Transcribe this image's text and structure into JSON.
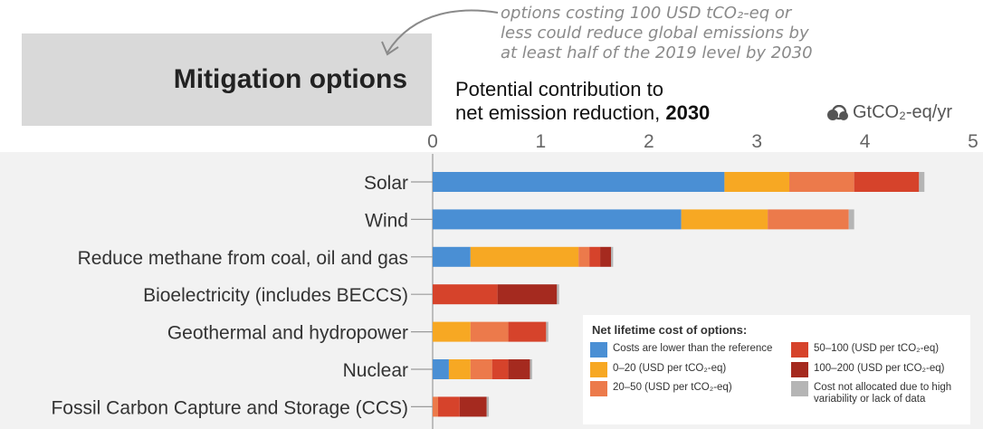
{
  "header": {
    "title": "Mitigation options",
    "annotation_lines": [
      "options costing 100 USD tCO₂-eq or",
      "less could reduce global emissions by",
      "at least half of the 2019 level by 2030"
    ],
    "subtitle_line1": "Potential contribution to",
    "subtitle_line2": "net emission reduction, ",
    "subtitle_year": "2030",
    "unit": "GtCO₂-eq/yr",
    "unit_icon": "cloud-icon"
  },
  "colors": {
    "lower": "#4a8fd4",
    "c0_20": "#f7a823",
    "c20_50": "#ec7a4b",
    "c50_100": "#d6432b",
    "c100_200": "#a52a1f",
    "na": "#b5b5b5",
    "panel": "#f2f2f2"
  },
  "chart_data": {
    "type": "bar",
    "orientation": "horizontal",
    "stacked": true,
    "title": "Potential contribution to net emission reduction, 2030",
    "unit": "GtCO₂-eq/yr",
    "xlim": [
      0,
      5
    ],
    "xticks": [
      "0",
      "1",
      "2",
      "3",
      "4",
      "5"
    ],
    "grid": false,
    "legend_position": "bottom-right",
    "categories": [
      "Solar",
      "Wind",
      "Reduce methane from coal, oil and gas",
      "Bioelectricity (includes BECCS)",
      "Geothermal and hydropower",
      "Nuclear",
      "Fossil Carbon Capture and Storage (CCS)"
    ],
    "series": [
      {
        "name": "Costs are lower than the reference",
        "color_key": "lower",
        "values": [
          2.7,
          2.3,
          0.35,
          0,
          0,
          0.15,
          0
        ]
      },
      {
        "name": "0–20 (USD per tCO₂-eq)",
        "color_key": "c0_20",
        "values": [
          0.6,
          0.8,
          1.0,
          0,
          0.35,
          0.2,
          0
        ]
      },
      {
        "name": "20–50 (USD per tCO₂-eq)",
        "color_key": "c20_50",
        "values": [
          0.6,
          0.75,
          0.1,
          0,
          0.35,
          0.2,
          0.05
        ]
      },
      {
        "name": "50–100 (USD per tCO₂-eq)",
        "color_key": "c50_100",
        "values": [
          0.6,
          0,
          0.1,
          0.6,
          0.35,
          0.15,
          0.2
        ]
      },
      {
        "name": "100–200 (USD per tCO₂-eq)",
        "color_key": "c100_200",
        "values": [
          0,
          0,
          0.1,
          0.55,
          0,
          0.2,
          0.25
        ]
      },
      {
        "name": "Cost not allocated due to high variability or lack of data",
        "color_key": "na",
        "values": [
          0.05,
          0.05,
          0.02,
          0.02,
          0.02,
          0.02,
          0.02
        ]
      }
    ]
  },
  "legend": {
    "title": "Net lifetime cost of options:",
    "items": [
      {
        "label": "Costs are lower than the reference",
        "color_key": "lower"
      },
      {
        "label": "0–20 (USD per tCO₂-eq)",
        "color_key": "c0_20"
      },
      {
        "label": "20–50 (USD per tCO₂-eq)",
        "color_key": "c20_50"
      },
      {
        "label": "50–100 (USD per tCO₂-eq)",
        "color_key": "c50_100"
      },
      {
        "label": "100–200 (USD per tCO₂-eq)",
        "color_key": "c100_200"
      },
      {
        "label": "Cost not allocated due to high variability or lack of data",
        "color_key": "na"
      }
    ]
  }
}
